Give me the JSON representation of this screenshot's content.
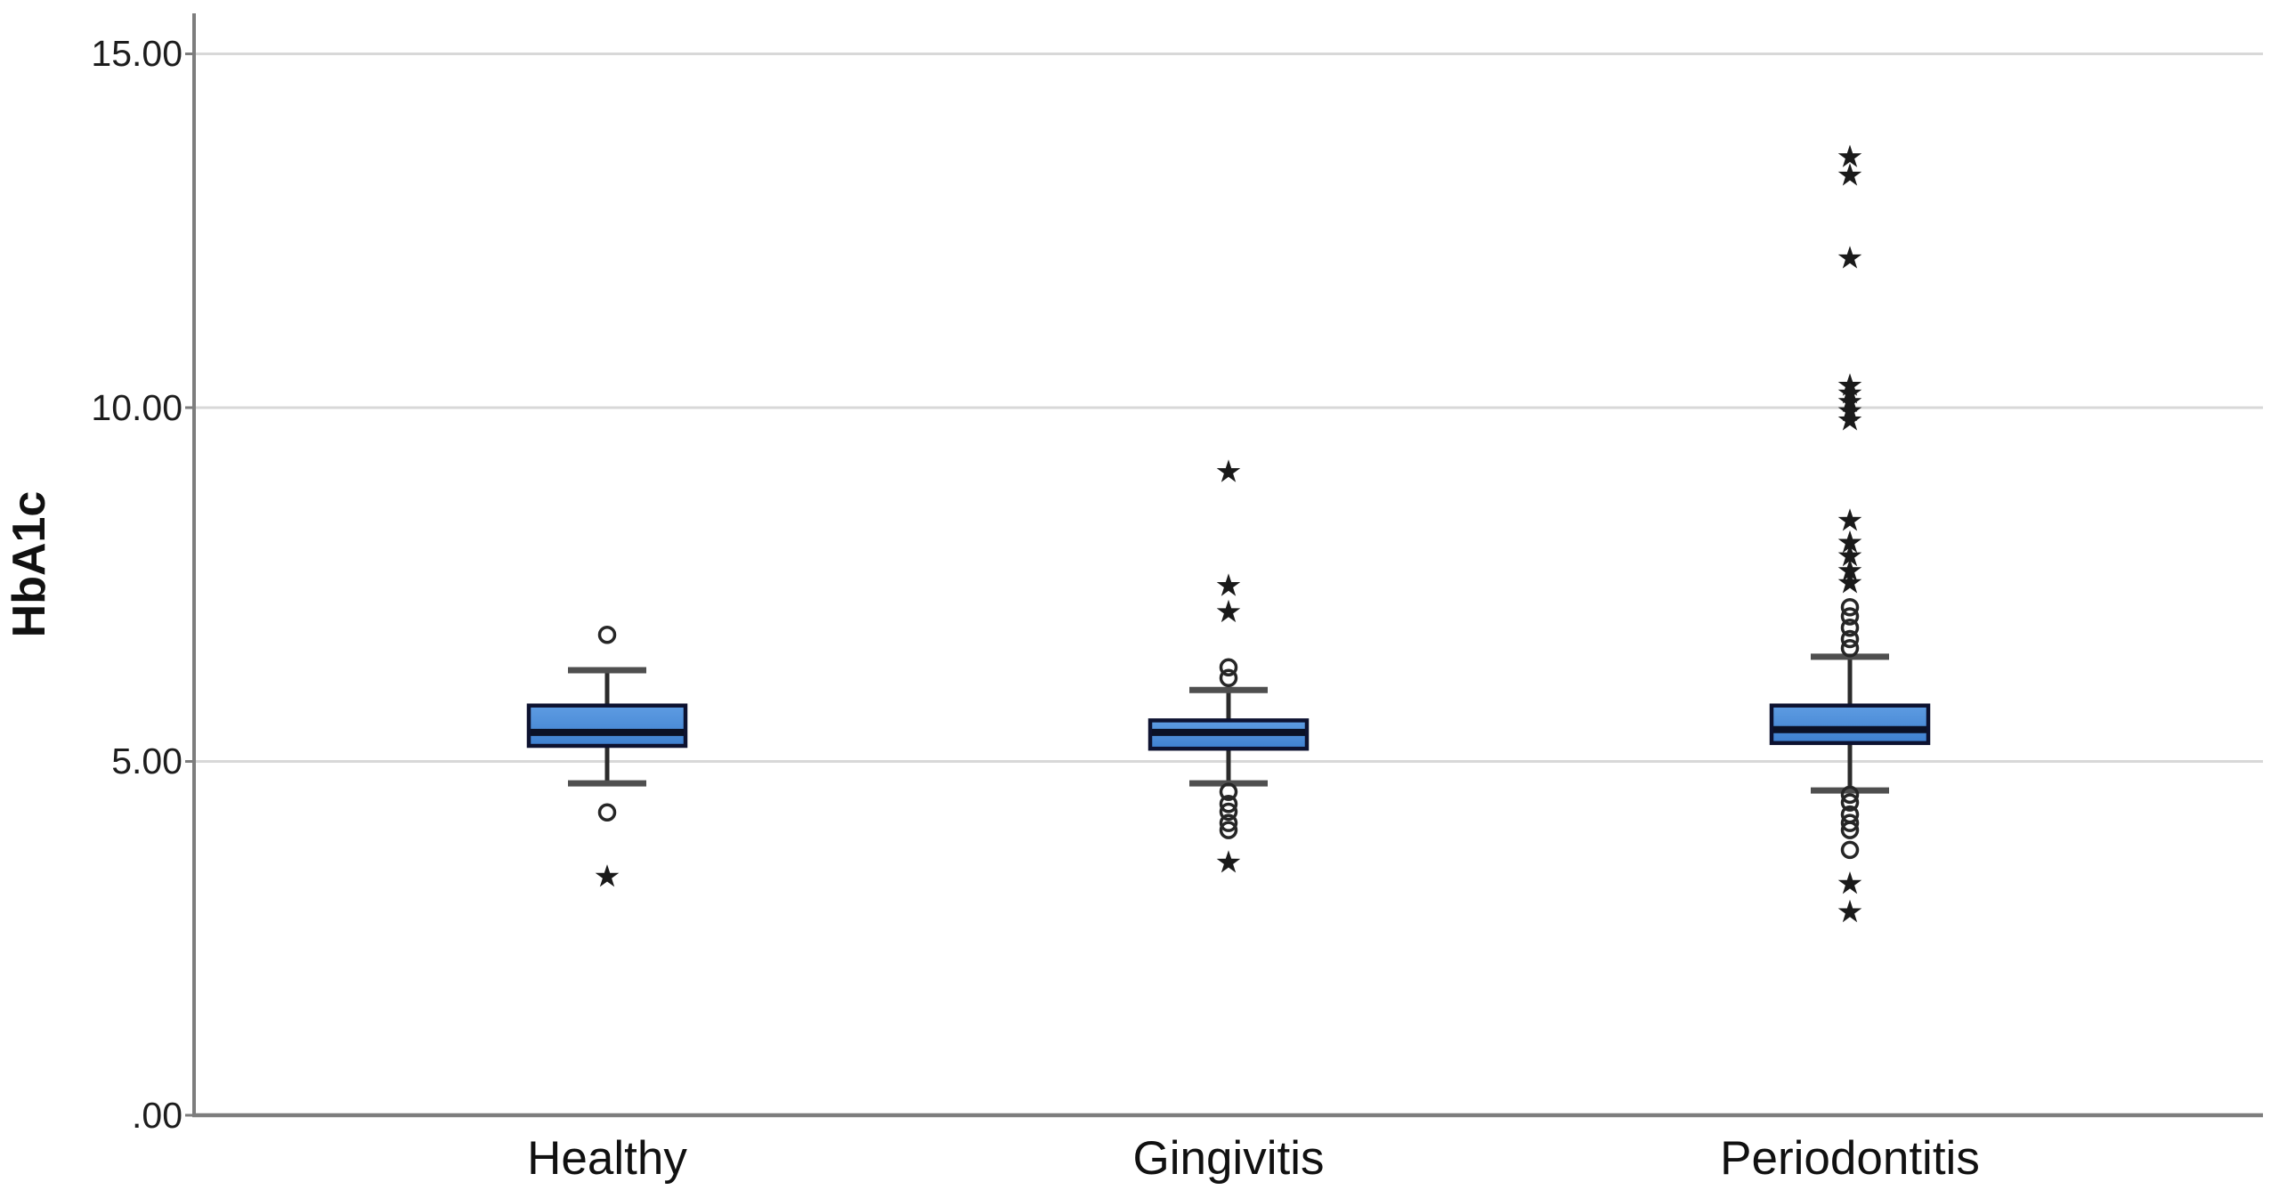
{
  "figure": {
    "background": "#ffffff"
  },
  "chart_data": {
    "type": "boxplot",
    "title": "",
    "xlabel": "",
    "ylabel": "HbA1c",
    "categories": [
      "Healthy",
      "Gingivitis",
      "Periodontitis"
    ],
    "y_axis": {
      "min": 0,
      "max": 15.6,
      "ticks": [
        0,
        5,
        10,
        15
      ],
      "tick_labels": [
        ".00",
        "5.00",
        "10.00",
        "15.00"
      ]
    },
    "grid": "horizontal-light",
    "legend": "none",
    "colors": {
      "box_fill_top": "#5E9CE2",
      "box_fill_bottom": "#3E80D0",
      "box_border": "#0d1230",
      "median_line": "#0b1126",
      "whisker": "#2b2b2b",
      "whisker_cap": "#4f4f4f",
      "outlier_stroke": "#262626",
      "extreme_fill": "#1a1a1a",
      "gridline": "#d8d8d8",
      "axis": "#7d7d7d"
    },
    "series": [
      {
        "name": "Healthy",
        "q1": 5.22,
        "median": 5.41,
        "q3": 5.79,
        "whisker_low": 4.69,
        "whisker_high": 6.29,
        "outliers_circle": [
          6.79,
          4.28
        ],
        "outliers_extreme": [
          3.37
        ]
      },
      {
        "name": "Gingivitis",
        "q1": 5.18,
        "median": 5.41,
        "q3": 5.58,
        "whisker_low": 4.69,
        "whisker_high": 6.01,
        "outliers_circle": [
          6.33,
          6.18,
          4.57,
          4.4,
          4.29,
          4.13,
          4.03
        ],
        "outliers_extreme": [
          9.09,
          7.48,
          7.11,
          3.57
        ]
      },
      {
        "name": "Periodontitis",
        "q1": 5.26,
        "median": 5.45,
        "q3": 5.79,
        "whisker_low": 4.59,
        "whisker_high": 6.48,
        "outliers_circle": [
          7.18,
          7.05,
          6.89,
          6.73,
          6.6,
          4.53,
          4.42,
          4.25,
          4.13,
          4.03,
          3.75
        ],
        "outliers_extreme": [
          13.54,
          13.28,
          12.11,
          10.31,
          10.2,
          10.08,
          9.95,
          9.82,
          8.4,
          8.09,
          7.9,
          7.69,
          7.52,
          3.27,
          2.87
        ]
      }
    ]
  }
}
